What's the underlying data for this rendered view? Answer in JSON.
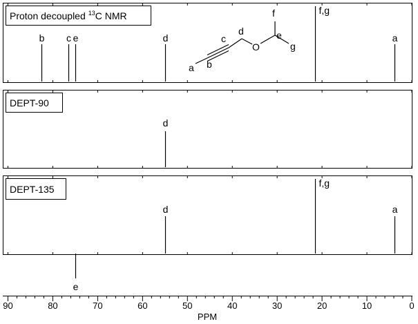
{
  "panels": [
    {
      "title": "Proton decoupled",
      "title_sup": "13",
      "title_tail": "C NMR",
      "peaks": [
        {
          "label": "b",
          "ppm": 82.5,
          "dir": "up"
        },
        {
          "label": "c",
          "ppm": 76.5,
          "dir": "up"
        },
        {
          "label": "e",
          "ppm": 75.0,
          "dir": "up"
        },
        {
          "label": "d",
          "ppm": 55.0,
          "dir": "up"
        },
        {
          "label": "f,g",
          "ppm": 21.5,
          "dir": "up"
        },
        {
          "label": "a",
          "ppm": 3.8,
          "dir": "up"
        }
      ]
    },
    {
      "title": "DEPT-90",
      "peaks": [
        {
          "label": "d",
          "ppm": 55.0,
          "dir": "up"
        }
      ]
    },
    {
      "title": "DEPT-135",
      "peaks": [
        {
          "label": "d",
          "ppm": 55.0,
          "dir": "up"
        },
        {
          "label": "f,g",
          "ppm": 21.5,
          "dir": "up"
        },
        {
          "label": "a",
          "ppm": 3.8,
          "dir": "up"
        },
        {
          "label": "e",
          "ppm": 75.0,
          "dir": "down"
        }
      ]
    }
  ],
  "molecule_labels": [
    "a",
    "b",
    "c",
    "d",
    "e",
    "f",
    "g"
  ],
  "molecule_atom": "O",
  "axis": {
    "label": "PPM",
    "ticks": [
      90,
      80,
      70,
      60,
      50,
      40,
      30,
      20,
      10,
      0
    ],
    "xlim": [
      91,
      0
    ]
  }
}
